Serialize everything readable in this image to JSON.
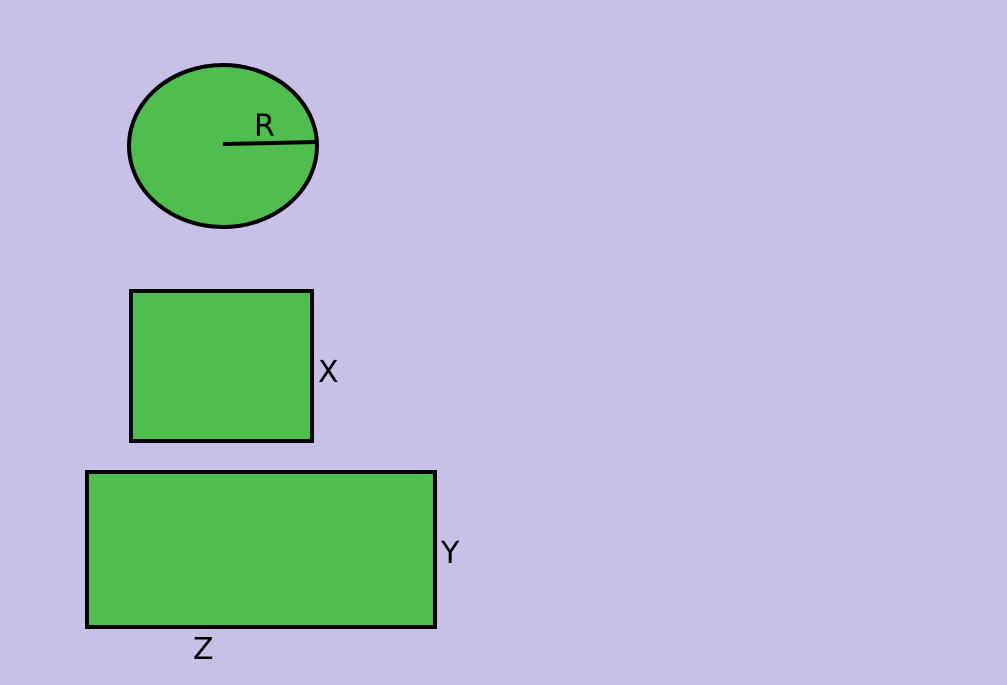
{
  "colors": {
    "background": "#c8c0e6",
    "fill": "#4fbe4f",
    "stroke": "#000000"
  },
  "diagram": {
    "circle": {
      "label": "R"
    },
    "square": {
      "label": "X"
    },
    "rectangle": {
      "height_label": "Y",
      "width_label": "Z"
    }
  }
}
